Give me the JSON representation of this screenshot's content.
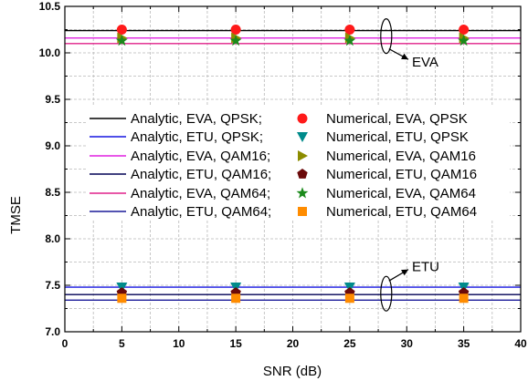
{
  "chart_data": {
    "type": "scatter",
    "xlabel": "SNR (dB)",
    "ylabel": "TMSE",
    "xlim": [
      0,
      40
    ],
    "ylim": [
      7.0,
      10.5
    ],
    "xticks": [
      0,
      5,
      10,
      15,
      20,
      25,
      30,
      35,
      40
    ],
    "yticks": [
      7.0,
      7.5,
      8.0,
      8.5,
      9.0,
      9.5,
      10.0,
      10.5
    ],
    "xtick_labels": [
      "0",
      "5",
      "10",
      "15",
      "20",
      "25",
      "30",
      "35",
      "40"
    ],
    "ytick_labels": [
      "7.0",
      "7.5",
      "8.0",
      "8.5",
      "9.0",
      "9.5",
      "10.0",
      "10.5"
    ],
    "grid": true,
    "legend_position": "center-left",
    "x": [
      5,
      15,
      25,
      35
    ],
    "annotations": [
      {
        "text": "EVA",
        "target_y": 10.18,
        "label_x": 30.3,
        "label_y": 9.9
      },
      {
        "text": "ETU",
        "target_y": 7.41,
        "label_x": 30.3,
        "label_y": 7.7
      }
    ],
    "series": [
      {
        "name": "Analytic, EVA, QPSK;",
        "kind": "line",
        "color": "#000000",
        "values": [
          10.24,
          10.24,
          10.24,
          10.24
        ]
      },
      {
        "name": "Analytic, ETU, QPSK;",
        "kind": "line",
        "color": "#1515e0",
        "values": [
          7.48,
          7.48,
          7.48,
          7.48
        ]
      },
      {
        "name": "Analytic, EVA, QAM16;",
        "kind": "line",
        "color": "#e020e0",
        "values": [
          10.16,
          10.16,
          10.16,
          10.16
        ]
      },
      {
        "name": "Analytic, ETU, QAM16;",
        "kind": "line",
        "color": "#000055",
        "values": [
          7.4,
          7.4,
          7.4,
          7.4
        ]
      },
      {
        "name": "Analytic, EVA, QAM64;",
        "kind": "line",
        "color": "#e0208a",
        "values": [
          10.1,
          10.1,
          10.1,
          10.1
        ]
      },
      {
        "name": "Analytic, ETU, QAM64;",
        "kind": "line",
        "color": "#1a1a99",
        "values": [
          7.34,
          7.34,
          7.34,
          7.34
        ]
      },
      {
        "name": "Numerical, EVA, QPSK",
        "kind": "marker",
        "marker": "circle",
        "color": "#ff1a1a",
        "values": [
          10.25,
          10.25,
          10.25,
          10.25
        ]
      },
      {
        "name": "Numerical, ETU, QPSK",
        "kind": "marker",
        "marker": "triangle-down",
        "color": "#008b8b",
        "values": [
          7.48,
          7.48,
          7.48,
          7.48
        ]
      },
      {
        "name": "Numerical, EVA, QAM16",
        "kind": "marker",
        "marker": "triangle-right",
        "color": "#8c8c00",
        "values": [
          10.16,
          10.16,
          10.16,
          10.16
        ]
      },
      {
        "name": "Numerical, ETU, QAM16",
        "kind": "marker",
        "marker": "pentagon",
        "color": "#6b0a0a",
        "values": [
          7.42,
          7.42,
          7.42,
          7.42
        ]
      },
      {
        "name": "Numerical, EVA, QAM64",
        "kind": "marker",
        "marker": "star",
        "color": "#1b8a1b",
        "values": [
          10.13,
          10.13,
          10.13,
          10.13
        ]
      },
      {
        "name": "Numerical, ETU, QAM64",
        "kind": "marker",
        "marker": "square",
        "color": "#ff8c00",
        "values": [
          7.36,
          7.36,
          7.36,
          7.36
        ]
      }
    ]
  }
}
